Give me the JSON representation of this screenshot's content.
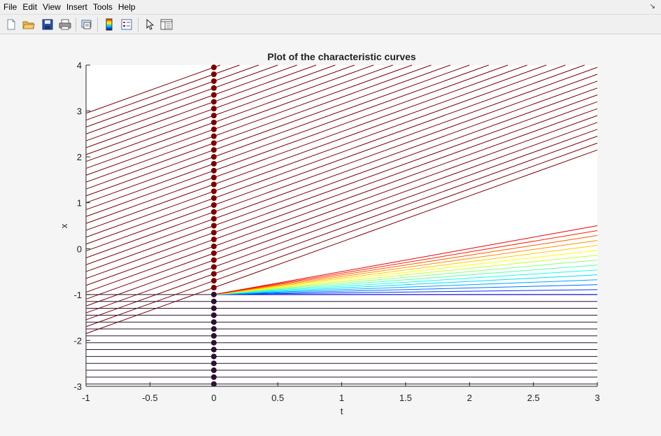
{
  "menu": {
    "items": [
      "File",
      "Edit",
      "View",
      "Insert",
      "Tools",
      "Help"
    ]
  },
  "toolbar": {
    "buttons": [
      "new-figure",
      "open-file",
      "save-figure",
      "print-figure",
      "print-preview",
      "insert-colorbar",
      "insert-legend",
      "edit-plot",
      "property-inspector"
    ]
  },
  "chart_data": {
    "type": "line",
    "title": "Plot of the characteristic curves",
    "xlabel": "t",
    "ylabel": "x",
    "xlim": [
      -1,
      3
    ],
    "ylim": [
      -3,
      4
    ],
    "xticks": [
      -1,
      -0.5,
      0,
      0.5,
      1,
      1.5,
      2,
      2.5,
      3
    ],
    "xtick_labels": [
      "-1",
      "-0.5",
      "0",
      "0.5",
      "1",
      "1.5",
      "2",
      "2.5",
      "3"
    ],
    "yticks": [
      -3,
      -2,
      -1,
      0,
      1,
      2,
      3,
      4
    ],
    "ytick_labels": [
      "-3",
      "-2",
      "-1",
      "0",
      "1",
      "2",
      "3",
      "4"
    ],
    "grid": false,
    "legend": "none",
    "colormap": "jet",
    "colors": {
      "upper_curves": "#7a0000",
      "lower_curves": "#2a1230",
      "markers_upper": "#7a0000",
      "markers_lower": "#2a1230"
    },
    "upper_characteristics": {
      "description": "x = x0 + t, for x0 > -1",
      "x0_values": [
        -0.85,
        -0.7,
        -0.55,
        -0.4,
        -0.25,
        -0.1,
        0.05,
        0.2,
        0.35,
        0.5,
        0.65,
        0.8,
        0.95,
        1.1,
        1.25,
        1.4,
        1.55,
        1.7,
        1.85,
        2.0,
        2.15,
        2.3,
        2.45,
        2.6,
        2.75,
        2.9,
        3.05,
        3.2,
        3.35,
        3.5,
        3.65,
        3.8,
        3.95
      ],
      "slope": 1
    },
    "lower_characteristics": {
      "description": "x = x0, for x0 <= -1",
      "x0_values": [
        -1.0,
        -1.15,
        -1.3,
        -1.45,
        -1.6,
        -1.75,
        -1.9,
        -2.05,
        -2.2,
        -2.35,
        -2.5,
        -2.65,
        -2.8,
        -2.95
      ],
      "slope": 0
    },
    "fan": {
      "description": "rarefaction fan from (0, -1): x = -1 + s*t",
      "origin": [
        0,
        -1
      ],
      "slopes": [
        0,
        0.0357,
        0.0714,
        0.1071,
        0.1429,
        0.1786,
        0.2143,
        0.25,
        0.2857,
        0.3214,
        0.3571,
        0.3929,
        0.4286,
        0.4643,
        0.5
      ]
    }
  }
}
